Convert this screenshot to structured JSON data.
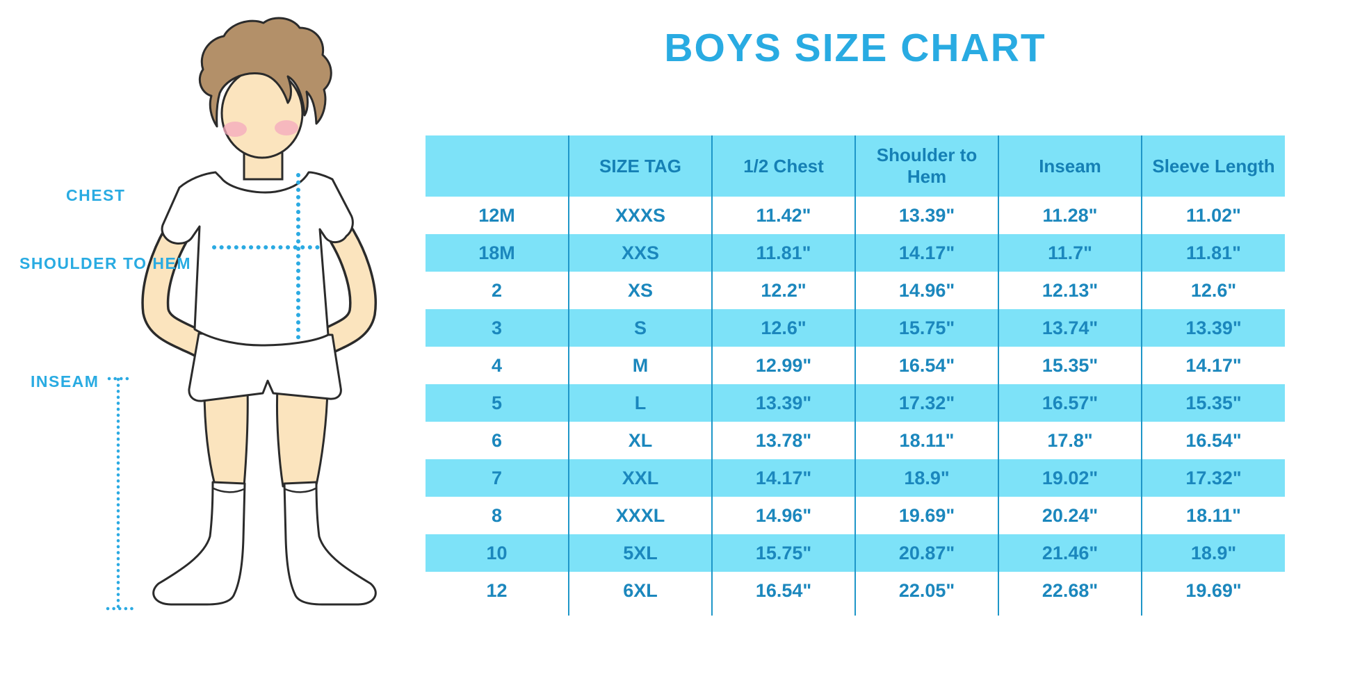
{
  "title": "BOYS SIZE CHART",
  "figure_labels": {
    "chest": "CHEST",
    "shoulder_to_hem": "SHOULDER TO HEM",
    "inseam": "INSEAM"
  },
  "colors": {
    "accent": "#29ABE2",
    "table_fill": "#7DE2F8",
    "table_text": "#1B87BD",
    "header_text": "#1580B5",
    "separator": "#1E96C8",
    "skin": "#FBE4BE",
    "hair": "#B39069",
    "blush": "#F4A9BE",
    "outline": "#2B2B2B"
  },
  "chart_data": {
    "type": "table",
    "title": "BOYS SIZE CHART",
    "columns": [
      "",
      "SIZE TAG",
      "1/2 Chest",
      "Shoulder to Hem",
      "Inseam",
      "Sleeve Length"
    ],
    "rows": [
      [
        "12M",
        "XXXS",
        "11.42\"",
        "13.39\"",
        "11.28\"",
        "11.02\""
      ],
      [
        "18M",
        "XXS",
        "11.81\"",
        "14.17\"",
        "11.7\"",
        "11.81\""
      ],
      [
        "2",
        "XS",
        "12.2\"",
        "14.96\"",
        "12.13\"",
        "12.6\""
      ],
      [
        "3",
        "S",
        "12.6\"",
        "15.75\"",
        "13.74\"",
        "13.39\""
      ],
      [
        "4",
        "M",
        "12.99\"",
        "16.54\"",
        "15.35\"",
        "14.17\""
      ],
      [
        "5",
        "L",
        "13.39\"",
        "17.32\"",
        "16.57\"",
        "15.35\""
      ],
      [
        "6",
        "XL",
        "13.78\"",
        "18.11\"",
        "17.8\"",
        "16.54\""
      ],
      [
        "7",
        "XXL",
        "14.17\"",
        "18.9\"",
        "19.02\"",
        "17.32\""
      ],
      [
        "8",
        "XXXL",
        "14.96\"",
        "19.69\"",
        "20.24\"",
        "18.11\""
      ],
      [
        "10",
        "5XL",
        "15.75\"",
        "20.87\"",
        "21.46\"",
        "18.9\""
      ],
      [
        "12",
        "6XL",
        "16.54\"",
        "22.05\"",
        "22.68\"",
        "19.69\""
      ]
    ]
  }
}
